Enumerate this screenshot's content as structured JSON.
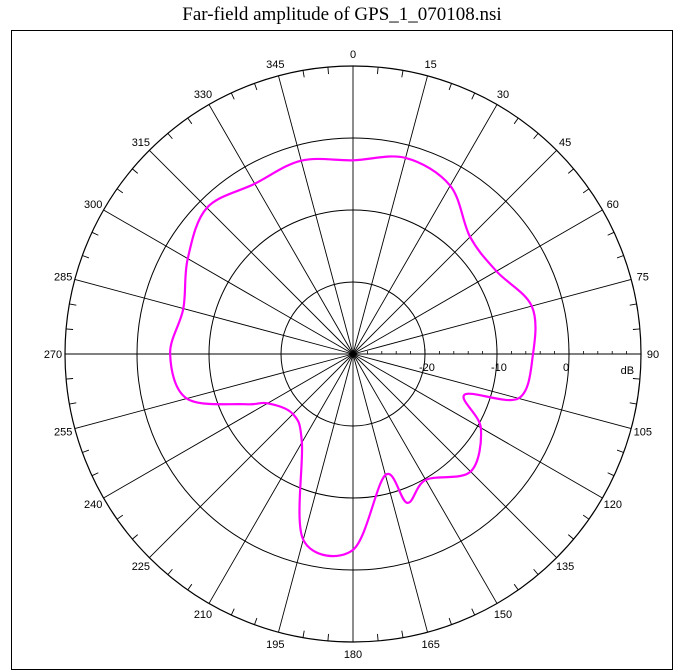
{
  "chart_data": {
    "type": "polar-line",
    "title": "Far-field amplitude of GPS_1_070108.nsi",
    "angle_labels": [
      "0",
      "15",
      "30",
      "45",
      "60",
      "75",
      "90",
      "105",
      "120",
      "135",
      "150",
      "165",
      "180",
      "195",
      "210",
      "225",
      "240",
      "255",
      "270",
      "285",
      "300",
      "315",
      "330",
      "345"
    ],
    "angle_direction": "clockwise",
    "angle_zero": "top",
    "radial_unit": "dB",
    "radial_ticks": [
      -20,
      -10,
      0
    ],
    "radial_range": [
      -30,
      10
    ],
    "grid": true,
    "series": [
      {
        "color": "#ff00ff",
        "angle_deg": [
          0,
          15,
          30,
          45,
          60,
          75,
          90,
          105,
          110,
          120,
          135,
          150,
          160,
          165,
          180,
          195,
          210,
          225,
          240,
          245,
          255,
          270,
          285,
          300,
          315,
          330,
          345
        ],
        "values_db": [
          -3.1,
          -1.8,
          -3.0,
          -7.0,
          -7.0,
          -4.3,
          -5.0,
          -6.2,
          -13.5,
          -9.5,
          -6.9,
          -9.8,
          -8.0,
          -12.6,
          -2.8,
          -3.3,
          -15.8,
          -18.2,
          -16.3,
          -13.5,
          -6.1,
          -4.6,
          -5.6,
          -3.5,
          -1.3,
          -2.7,
          -2.2
        ]
      }
    ],
    "colors": {
      "grid": "#000000",
      "series": "#ff00ff",
      "background": "#ffffff"
    }
  }
}
